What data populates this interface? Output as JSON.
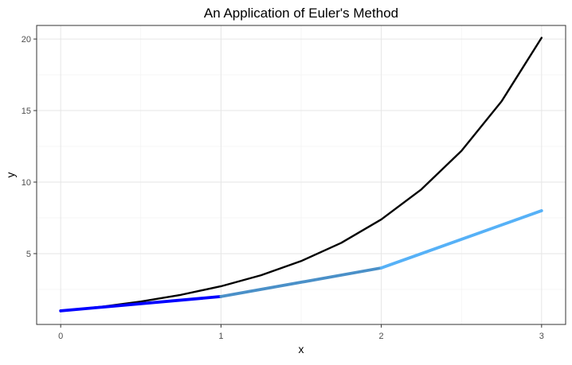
{
  "chart_data": {
    "type": "line",
    "title": "An Application of Euler's Method",
    "xlabel": "x",
    "ylabel": "y",
    "xlim": [
      -0.15,
      3.15
    ],
    "ylim": [
      0.05,
      20.95
    ],
    "x_ticks": [
      0,
      1,
      2,
      3
    ],
    "y_ticks": [
      5,
      10,
      15,
      20
    ],
    "grid": true,
    "legend": "none",
    "series": [
      {
        "color": "#000000",
        "x": [
          0,
          0.25,
          0.5,
          0.75,
          1,
          1.25,
          1.5,
          1.75,
          2,
          2.25,
          2.5,
          2.75,
          3
        ],
        "values": [
          1,
          1.28,
          1.65,
          2.12,
          2.72,
          3.49,
          4.48,
          5.75,
          7.39,
          9.49,
          12.18,
          15.64,
          20.09
        ]
      },
      {
        "color": "#56B1F7",
        "x": [
          0,
          1,
          2,
          3
        ],
        "values": [
          1,
          2,
          4,
          8
        ]
      }
    ]
  }
}
